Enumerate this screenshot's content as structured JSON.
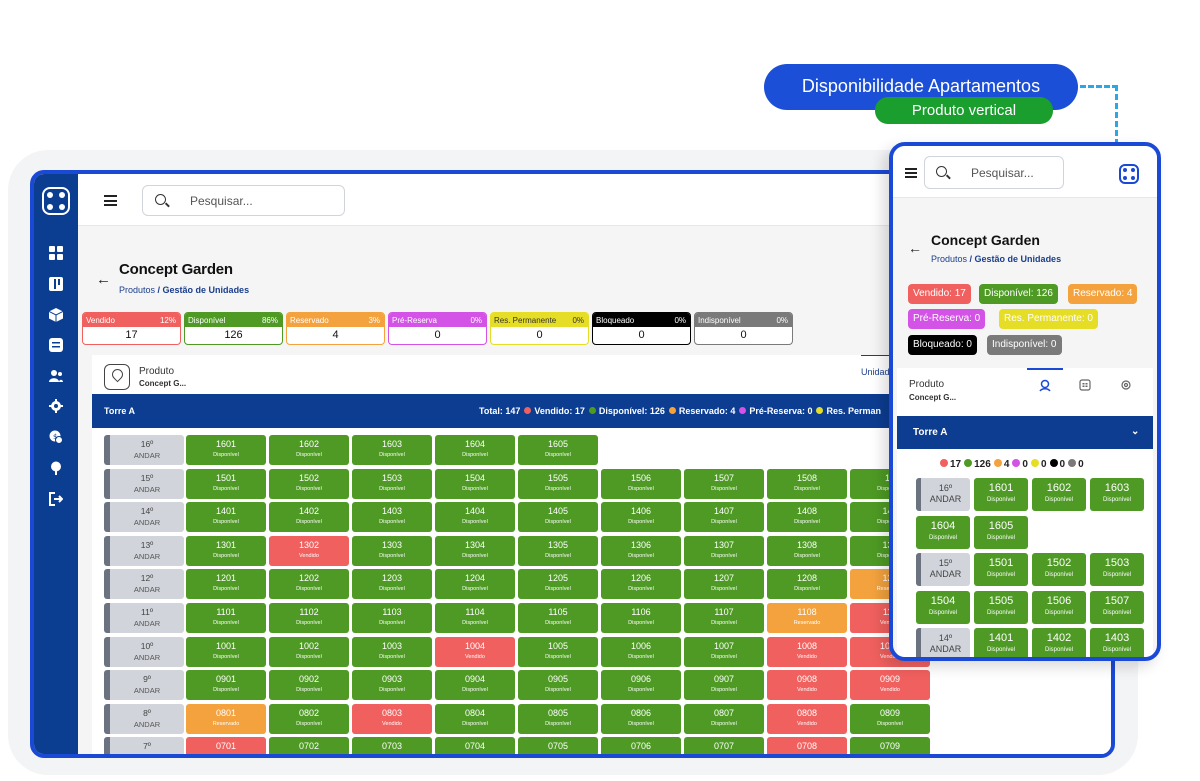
{
  "colors": {
    "vendido": "#f0605e",
    "disponivel": "#4e9a24",
    "reservado": "#f3a23e",
    "pre_reserva": "#d353e6",
    "res_permanente": "#e6de26",
    "bloqueado": "#000000",
    "indisponivel": "#7a7a7a",
    "primary": "#0c3d91",
    "accent": "#1a49d6"
  },
  "callout": {
    "title": "Disponibilidade Apartamentos",
    "subtitle": "Produto vertical"
  },
  "desktop": {
    "search_placeholder": "Pesquisar...",
    "sidebar_icons": [
      "logo-icon",
      "dashboard-icon",
      "kanban-icon",
      "box-icon",
      "list-icon",
      "users-icon",
      "gear-icon",
      "money-icon",
      "tree-icon",
      "logout-icon"
    ],
    "title": "Concept Garden",
    "breadcrumb": {
      "first": "Produtos",
      "sep": " / ",
      "second": "Gestão de Unidades"
    },
    "stats": [
      {
        "label": "Vendido",
        "pct": "12%",
        "value": "17",
        "key": "vendido"
      },
      {
        "label": "Disponível",
        "pct": "86%",
        "value": "126",
        "key": "disponivel"
      },
      {
        "label": "Reservado",
        "pct": "3%",
        "value": "4",
        "key": "reservado"
      },
      {
        "label": "Pré-Reserva",
        "pct": "0%",
        "value": "0",
        "key": "pre_reserva"
      },
      {
        "label": "Res. Permanente",
        "pct": "0%",
        "value": "0",
        "key": "res_permanente"
      },
      {
        "label": "Bloqueado",
        "pct": "0%",
        "value": "0",
        "key": "bloqueado"
      },
      {
        "label": "Indisponível",
        "pct": "0%",
        "value": "0",
        "key": "indisponivel"
      }
    ],
    "product_label": "Produto",
    "product_name": "Concept G...",
    "units_tab": "Unidad",
    "torre": "Torre A",
    "summary": {
      "total": "Total: 147",
      "items": [
        {
          "text": "Vendido: 17",
          "key": "vendido"
        },
        {
          "text": "Disponível: 126",
          "key": "disponivel"
        },
        {
          "text": "Reservado: 4",
          "key": "reservado"
        },
        {
          "text": "Pré-Reserva: 0",
          "key": "pre_reserva"
        },
        {
          "text": "Res. Perman",
          "key": "res_permanente"
        }
      ]
    },
    "andar_label": "ANDAR",
    "floors": [
      {
        "floor": "16º",
        "units": [
          [
            "1601",
            "d"
          ],
          [
            "1602",
            "d"
          ],
          [
            "1603",
            "d"
          ],
          [
            "1604",
            "d"
          ],
          [
            "1605",
            "d"
          ]
        ]
      },
      {
        "floor": "15º",
        "units": [
          [
            "1501",
            "d"
          ],
          [
            "1502",
            "d"
          ],
          [
            "1503",
            "d"
          ],
          [
            "1504",
            "d"
          ],
          [
            "1505",
            "d"
          ],
          [
            "1506",
            "d"
          ],
          [
            "1507",
            "d"
          ],
          [
            "1508",
            "d"
          ],
          [
            "15",
            "d"
          ]
        ]
      },
      {
        "floor": "14º",
        "units": [
          [
            "1401",
            "d"
          ],
          [
            "1402",
            "d"
          ],
          [
            "1403",
            "d"
          ],
          [
            "1404",
            "d"
          ],
          [
            "1405",
            "d"
          ],
          [
            "1406",
            "d"
          ],
          [
            "1407",
            "d"
          ],
          [
            "1408",
            "d"
          ],
          [
            "140",
            "d"
          ]
        ]
      },
      {
        "floor": "13º",
        "units": [
          [
            "1301",
            "d"
          ],
          [
            "1302",
            "v"
          ],
          [
            "1303",
            "d"
          ],
          [
            "1304",
            "d"
          ],
          [
            "1305",
            "d"
          ],
          [
            "1306",
            "d"
          ],
          [
            "1307",
            "d"
          ],
          [
            "1308",
            "d"
          ],
          [
            "130",
            "d"
          ]
        ]
      },
      {
        "floor": "12º",
        "units": [
          [
            "1201",
            "d"
          ],
          [
            "1202",
            "d"
          ],
          [
            "1203",
            "d"
          ],
          [
            "1204",
            "d"
          ],
          [
            "1205",
            "d"
          ],
          [
            "1206",
            "d"
          ],
          [
            "1207",
            "d"
          ],
          [
            "1208",
            "d"
          ],
          [
            "120",
            "r"
          ]
        ]
      },
      {
        "floor": "11º",
        "units": [
          [
            "1101",
            "d"
          ],
          [
            "1102",
            "d"
          ],
          [
            "1103",
            "d"
          ],
          [
            "1104",
            "d"
          ],
          [
            "1105",
            "d"
          ],
          [
            "1106",
            "d"
          ],
          [
            "1107",
            "d"
          ],
          [
            "1108",
            "r"
          ],
          [
            "110",
            "v"
          ]
        ]
      },
      {
        "floor": "10º",
        "units": [
          [
            "1001",
            "d"
          ],
          [
            "1002",
            "d"
          ],
          [
            "1003",
            "d"
          ],
          [
            "1004",
            "v"
          ],
          [
            "1005",
            "d"
          ],
          [
            "1006",
            "d"
          ],
          [
            "1007",
            "d"
          ],
          [
            "1008",
            "v"
          ],
          [
            "1009",
            "v"
          ]
        ]
      },
      {
        "floor": "9º",
        "units": [
          [
            "0901",
            "d"
          ],
          [
            "0902",
            "d"
          ],
          [
            "0903",
            "d"
          ],
          [
            "0904",
            "d"
          ],
          [
            "0905",
            "d"
          ],
          [
            "0906",
            "d"
          ],
          [
            "0907",
            "d"
          ],
          [
            "0908",
            "v"
          ],
          [
            "0909",
            "v"
          ]
        ]
      },
      {
        "floor": "8º",
        "units": [
          [
            "0801",
            "r"
          ],
          [
            "0802",
            "d"
          ],
          [
            "0803",
            "v"
          ],
          [
            "0804",
            "d"
          ],
          [
            "0805",
            "d"
          ],
          [
            "0806",
            "d"
          ],
          [
            "0807",
            "d"
          ],
          [
            "0808",
            "v"
          ],
          [
            "0809",
            "d"
          ]
        ]
      },
      {
        "floor": "7º",
        "units": [
          [
            "0701",
            "v"
          ],
          [
            "0702",
            "d"
          ],
          [
            "0703",
            "d"
          ],
          [
            "0704",
            "d"
          ],
          [
            "0705",
            "d"
          ],
          [
            "0706",
            "d"
          ],
          [
            "0707",
            "d"
          ],
          [
            "0708",
            "v"
          ],
          [
            "0709",
            "d"
          ]
        ]
      }
    ],
    "status_labels": {
      "d": "Disponível",
      "v": "Vendido",
      "r": "Reservado"
    }
  },
  "mobile": {
    "search_placeholder": "Pesquisar...",
    "title": "Concept Garden",
    "breadcrumb": {
      "first": "Produtos",
      "sep": " / ",
      "second": "Gestão de Unidades"
    },
    "chips": [
      {
        "text": "Vendido: 17",
        "key": "vendido"
      },
      {
        "text": "Disponível: 126",
        "key": "disponivel"
      },
      {
        "text": "Reservado: 4",
        "key": "reservado"
      },
      {
        "text": "Pré-Reserva: 0",
        "key": "pre_reserva"
      },
      {
        "text": "Res. Permanente: 0",
        "key": "res_permanente"
      },
      {
        "text": "Bloqueado: 0",
        "key": "bloqueado"
      },
      {
        "text": "Indisponível: 0",
        "key": "indisponivel"
      }
    ],
    "product_label": "Produto",
    "product_name": "Concept G...",
    "torre": "Torre A",
    "summary": [
      {
        "text": "17",
        "key": "vendido"
      },
      {
        "text": "126",
        "key": "disponivel"
      },
      {
        "text": "4",
        "key": "reservado"
      },
      {
        "text": "0",
        "key": "pre_reserva"
      },
      {
        "text": "0",
        "key": "res_permanente"
      },
      {
        "text": "0",
        "key": "bloqueado"
      },
      {
        "text": "0",
        "key": "indisponivel"
      }
    ],
    "rows": [
      {
        "floor": "16º",
        "andar": "ANDAR",
        "units": [
          "1601",
          "1602",
          "1603"
        ]
      },
      {
        "floor": "",
        "andar": "",
        "units": [
          "1604",
          "1605"
        ]
      },
      {
        "floor": "15º",
        "andar": "ANDAR",
        "units": [
          "1501",
          "1502",
          "1503"
        ]
      },
      {
        "floor": "",
        "andar": "",
        "units": [
          "1504",
          "1505",
          "1506",
          "1507"
        ]
      },
      {
        "floor": "14º",
        "andar": "ANDAR",
        "units": [
          "1401",
          "1402",
          "1403"
        ]
      }
    ],
    "unit_status": "Disponível"
  }
}
